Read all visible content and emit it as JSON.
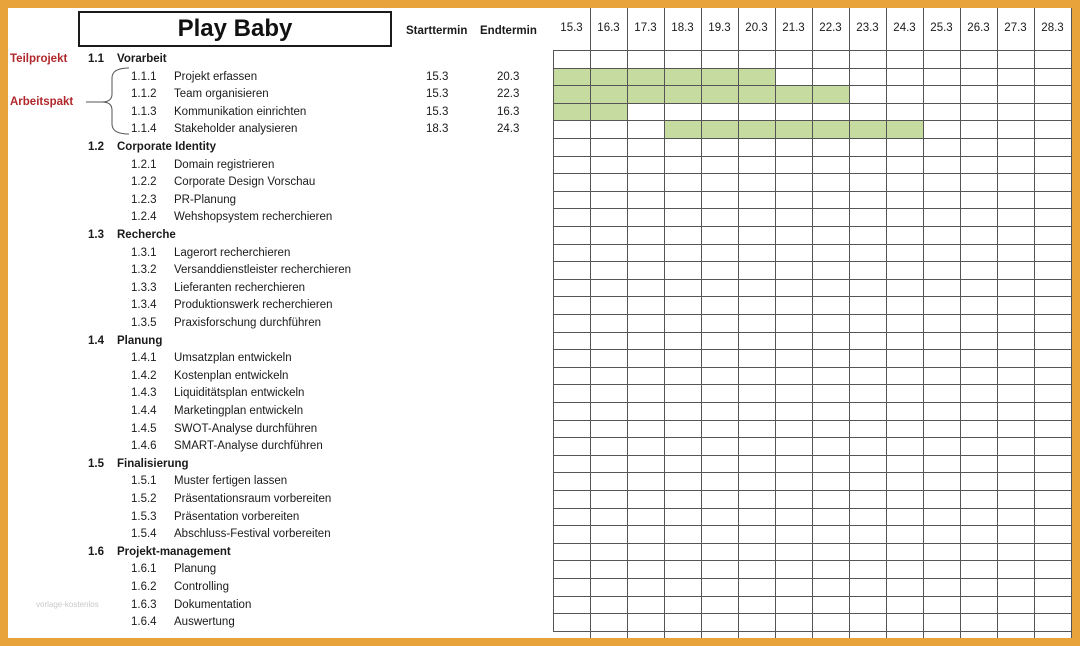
{
  "title": "Play Baby",
  "headers": {
    "start": "Starttermin",
    "end": "Endtermin"
  },
  "side_labels": {
    "teilprojekt": "Teilprojekt",
    "arbeitspakt": "Arbeitspakt"
  },
  "dates": [
    "15.3",
    "16.3",
    "17.3",
    "18.3",
    "19.3",
    "20.3",
    "21.3",
    "22.3",
    "23.3",
    "24.3",
    "25.3",
    "26.3",
    "27.3",
    "28.3"
  ],
  "bar_color": "#c6dba0",
  "tasks": [
    {
      "type": "group",
      "num": "1.1",
      "name": "Vorarbeit"
    },
    {
      "type": "task",
      "num": "1.1.1",
      "name": "Projekt erfassen",
      "start": "15.3",
      "end": "20.3"
    },
    {
      "type": "task",
      "num": "1.1.2",
      "name": "Team organisieren",
      "start": "15.3",
      "end": "22.3"
    },
    {
      "type": "task",
      "num": "1.1.3",
      "name": "Kommunikation einrichten",
      "start": "15.3",
      "end": "16.3"
    },
    {
      "type": "task",
      "num": "1.1.4",
      "name": "Stakeholder analysieren",
      "start": "18.3",
      "end": "24.3"
    },
    {
      "type": "group",
      "num": "1.2",
      "name": "Corporate Identity"
    },
    {
      "type": "task",
      "num": "1.2.1",
      "name": "Domain registrieren"
    },
    {
      "type": "task",
      "num": "1.2.2",
      "name": "Corporate Design Vorschau"
    },
    {
      "type": "task",
      "num": "1.2.3",
      "name": "PR-Planung"
    },
    {
      "type": "task",
      "num": "1.2.4",
      "name": "Wehshopsystem recherchieren"
    },
    {
      "type": "group",
      "num": "1.3",
      "name": "Recherche"
    },
    {
      "type": "task",
      "num": "1.3.1",
      "name": "Lagerort recherchieren"
    },
    {
      "type": "task",
      "num": "1.3.2",
      "name": "Versanddienstleister recherchieren"
    },
    {
      "type": "task",
      "num": "1.3.3",
      "name": "Lieferanten recherchieren"
    },
    {
      "type": "task",
      "num": "1.3.4",
      "name": "Produktionswerk recherchieren"
    },
    {
      "type": "task",
      "num": "1.3.5",
      "name": "Praxisforschung durchführen"
    },
    {
      "type": "group",
      "num": "1.4",
      "name": "Planung"
    },
    {
      "type": "task",
      "num": "1.4.1",
      "name": "Umsatzplan entwickeln"
    },
    {
      "type": "task",
      "num": "1.4.2",
      "name": "Kostenplan entwickeln"
    },
    {
      "type": "task",
      "num": "1.4.3",
      "name": "Liquiditätsplan entwickeln"
    },
    {
      "type": "task",
      "num": "1.4.4",
      "name": "Marketingplan entwickeln"
    },
    {
      "type": "task",
      "num": "1.4.5",
      "name": "SWOT-Analyse durchführen"
    },
    {
      "type": "task",
      "num": "1.4.6",
      "name": "SMART-Analyse durchführen"
    },
    {
      "type": "group",
      "num": "1.5",
      "name": "Finalisierung"
    },
    {
      "type": "task",
      "num": "1.5.1",
      "name": "Muster fertigen lassen"
    },
    {
      "type": "task",
      "num": "1.5.2",
      "name": "Präsentationsraum vorbereiten"
    },
    {
      "type": "task",
      "num": "1.5.3",
      "name": "Präsentation vorbereiten"
    },
    {
      "type": "task",
      "num": "1.5.4",
      "name": "Abschluss-Festival vorbereiten"
    },
    {
      "type": "group",
      "num": "1.6",
      "name": "Projekt-management"
    },
    {
      "type": "task",
      "num": "1.6.1",
      "name": "Planung"
    },
    {
      "type": "task",
      "num": "1.6.2",
      "name": "Controlling"
    },
    {
      "type": "task",
      "num": "1.6.3",
      "name": "Dokumentation"
    },
    {
      "type": "task",
      "num": "1.6.4",
      "name": "Auswertung"
    }
  ]
}
